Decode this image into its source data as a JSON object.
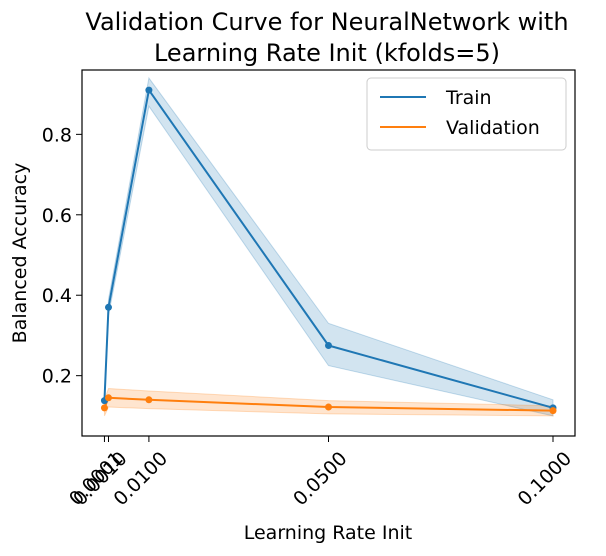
{
  "chart_data": {
    "type": "line",
    "title_lines": [
      "Validation Curve for NeuralNetwork with",
      "Learning Rate Init (kfolds=5)"
    ],
    "xlabel": "Learning Rate Init",
    "ylabel": "Balanced Accuracy",
    "xlim": [
      -0.0049,
      0.1049
    ],
    "ylim": [
      0.05,
      0.96
    ],
    "xticks": [
      {
        "value": 0.0001,
        "label": "0.0001"
      },
      {
        "value": 0.001,
        "label": "0.0010"
      },
      {
        "value": 0.01,
        "label": "0.0100"
      },
      {
        "value": 0.05,
        "label": "0.0500"
      },
      {
        "value": 0.1,
        "label": "0.1000"
      }
    ],
    "yticks": [
      {
        "value": 0.2,
        "label": "0.2"
      },
      {
        "value": 0.4,
        "label": "0.4"
      },
      {
        "value": 0.6,
        "label": "0.6"
      },
      {
        "value": 0.8,
        "label": "0.8"
      }
    ],
    "grid": false,
    "legend_position": "top-right",
    "x": [
      0.0001,
      0.001,
      0.01,
      0.05,
      0.1
    ],
    "series": [
      {
        "name": "Train",
        "color": "#1f77b4",
        "values": [
          0.138,
          0.37,
          0.91,
          0.275,
          0.12
        ],
        "lower": [
          0.13,
          0.35,
          0.87,
          0.225,
          0.1
        ],
        "upper": [
          0.146,
          0.39,
          0.94,
          0.33,
          0.14
        ]
      },
      {
        "name": "Validation",
        "color": "#ff7f0e",
        "values": [
          0.12,
          0.145,
          0.14,
          0.122,
          0.113
        ],
        "lower": [
          0.1,
          0.122,
          0.118,
          0.105,
          0.1
        ],
        "upper": [
          0.14,
          0.168,
          0.162,
          0.138,
          0.125
        ]
      }
    ]
  }
}
